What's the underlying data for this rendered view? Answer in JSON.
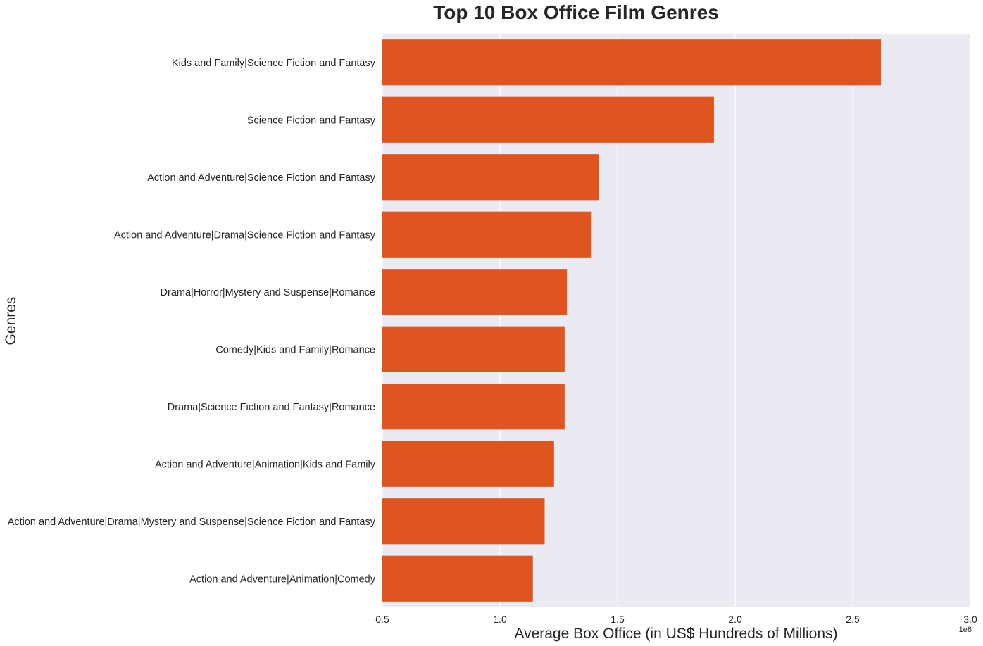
{
  "chart_data": {
    "type": "bar",
    "orientation": "horizontal",
    "title": "Top 10 Box Office Film Genres",
    "xlabel": "Average Box Office (in US$ Hundreds of Millions)",
    "ylabel": "Genres",
    "x_offset_label": "1e8",
    "xlim": [
      0.5,
      3.0
    ],
    "xticks": [
      0.5,
      1.0,
      1.5,
      2.0,
      2.5,
      3.0
    ],
    "xtick_labels": [
      "0.5",
      "1.0",
      "1.5",
      "2.0",
      "2.5",
      "3.0"
    ],
    "grid": true,
    "bar_color": "#e0541f",
    "background_color": "#eaeaf2",
    "grid_color": "#ffffff",
    "categories": [
      "Kids and Family|Science Fiction and Fantasy",
      "Science Fiction and Fantasy",
      "Action and Adventure|Science Fiction and Fantasy",
      "Action and Adventure|Drama|Science Fiction and Fantasy",
      "Drama|Horror|Mystery and Suspense|Romance",
      "Comedy|Kids and Family|Romance",
      "Drama|Science Fiction and Fantasy|Romance",
      "Action and Adventure|Animation|Kids and Family",
      "Action and Adventure|Drama|Mystery and Suspense|Science Fiction and Fantasy",
      "Action and Adventure|Animation|Comedy"
    ],
    "values": [
      2.62,
      1.91,
      1.42,
      1.39,
      1.285,
      1.275,
      1.275,
      1.23,
      1.19,
      1.14
    ]
  }
}
